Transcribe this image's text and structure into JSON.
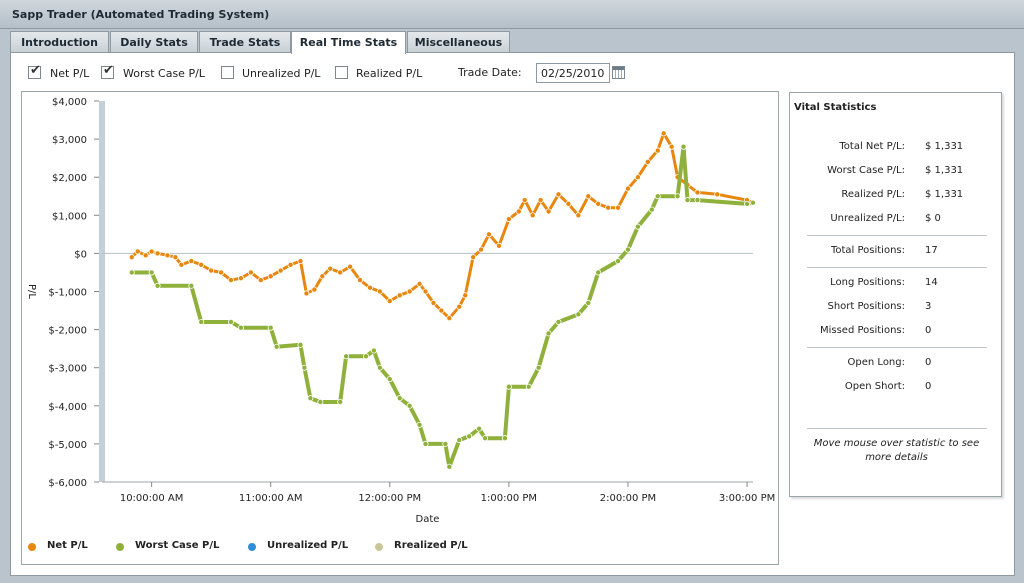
{
  "window": {
    "title": "Sapp Trader (Automated Trading System)"
  },
  "tabs": [
    {
      "label": "Introduction"
    },
    {
      "label": "Daily Stats"
    },
    {
      "label": "Trade Stats"
    },
    {
      "label": "Real Time Stats"
    },
    {
      "label": "Miscellaneous"
    }
  ],
  "active_tab": "Real Time Stats",
  "options": {
    "checkboxes": [
      {
        "label": "Net P/L",
        "checked": true
      },
      {
        "label": "Worst Case P/L",
        "checked": true
      },
      {
        "label": "Unrealized P/L",
        "checked": false
      },
      {
        "label": "Realized P/L",
        "checked": false
      }
    ],
    "trade_date_label": "Trade Date:",
    "trade_date_value": "02/25/2010"
  },
  "vitals": {
    "title": "Vital Statistics",
    "rows": [
      {
        "label": "Total Net P/L:",
        "value": "$ 1,331"
      },
      {
        "label": "Worst Case P/L:",
        "value": "$ 1,331"
      },
      {
        "label": "Realized P/L:",
        "value": "$ 1,331"
      },
      {
        "label": "Unrealized P/L:",
        "value": "$ 0"
      },
      {
        "label": "Total Positions:",
        "value": "17"
      },
      {
        "label": "Long Positions:",
        "value": "14"
      },
      {
        "label": "Short Positions:",
        "value": "3"
      },
      {
        "label": "Missed Positions:",
        "value": "0"
      },
      {
        "label": "Open Long:",
        "value": "0"
      },
      {
        "label": "Open Short:",
        "value": "0"
      }
    ],
    "note": "Move mouse over statistic to see more details"
  },
  "legend": [
    {
      "label": "Net P/L",
      "color": "#e8870d"
    },
    {
      "label": "Worst Case P/L",
      "color": "#8fb13c"
    },
    {
      "label": "Unrealized P/L",
      "color": "#2e8ed6"
    },
    {
      "label": "Rrealized P/L",
      "color": "#c9c79a"
    }
  ],
  "chart_data": {
    "type": "line",
    "xlabel": "Date",
    "ylabel": "P/L",
    "x_ticks": [
      "10:00:00 AM",
      "11:00:00 AM",
      "12:00:00 PM",
      "1:00:00 PM",
      "2:00:00 PM",
      "3:00:00 PM"
    ],
    "x_range": [
      "9:35",
      "3:03"
    ],
    "y_ticks": [
      "$4,000",
      "$3,000",
      "$2,000",
      "$1,000",
      "$0",
      "$-1,000",
      "$-2,000",
      "$-3,000",
      "$-4,000",
      "$-5,000",
      "$-6,000"
    ],
    "ylim": [
      -6000,
      4000
    ],
    "grid": "horizontal-zero-line",
    "series": [
      {
        "name": "Net P/L",
        "color": "#e8870d",
        "points": [
          [
            "9:50",
            -100
          ],
          [
            "9:53",
            50
          ],
          [
            "9:57",
            -50
          ],
          [
            "10:00",
            50
          ],
          [
            "10:03",
            0
          ],
          [
            "10:08",
            -50
          ],
          [
            "10:12",
            -100
          ],
          [
            "10:15",
            -300
          ],
          [
            "10:20",
            -200
          ],
          [
            "10:25",
            -300
          ],
          [
            "10:30",
            -450
          ],
          [
            "10:35",
            -500
          ],
          [
            "10:40",
            -700
          ],
          [
            "10:45",
            -650
          ],
          [
            "10:50",
            -500
          ],
          [
            "10:55",
            -700
          ],
          [
            "11:00",
            -600
          ],
          [
            "11:05",
            -450
          ],
          [
            "11:10",
            -300
          ],
          [
            "11:15",
            -200
          ],
          [
            "11:18",
            -1050
          ],
          [
            "11:22",
            -950
          ],
          [
            "11:26",
            -600
          ],
          [
            "11:30",
            -400
          ],
          [
            "11:35",
            -500
          ],
          [
            "11:40",
            -350
          ],
          [
            "11:45",
            -700
          ],
          [
            "11:50",
            -900
          ],
          [
            "11:55",
            -1000
          ],
          [
            "12:00",
            -1250
          ],
          [
            "12:05",
            -1100
          ],
          [
            "12:10",
            -1000
          ],
          [
            "12:15",
            -800
          ],
          [
            "12:18",
            -1000
          ],
          [
            "12:22",
            -1300
          ],
          [
            "12:26",
            -1500
          ],
          [
            "12:30",
            -1700
          ],
          [
            "12:35",
            -1400
          ],
          [
            "12:38",
            -1100
          ],
          [
            "12:42",
            -100
          ],
          [
            "12:46",
            100
          ],
          [
            "12:50",
            500
          ],
          [
            "12:55",
            200
          ],
          [
            "13:00",
            900
          ],
          [
            "13:05",
            1100
          ],
          [
            "13:08",
            1400
          ],
          [
            "13:12",
            1000
          ],
          [
            "13:16",
            1400
          ],
          [
            "13:20",
            1100
          ],
          [
            "13:25",
            1550
          ],
          [
            "13:30",
            1300
          ],
          [
            "13:35",
            1000
          ],
          [
            "13:40",
            1500
          ],
          [
            "13:45",
            1300
          ],
          [
            "13:50",
            1200
          ],
          [
            "13:55",
            1200
          ],
          [
            "14:00",
            1700
          ],
          [
            "14:05",
            2000
          ],
          [
            "14:10",
            2400
          ],
          [
            "14:15",
            2700
          ],
          [
            "14:18",
            3150
          ],
          [
            "14:22",
            2800
          ],
          [
            "14:25",
            2000
          ],
          [
            "14:30",
            1800
          ],
          [
            "14:35",
            1600
          ],
          [
            "14:45",
            1550
          ],
          [
            "15:00",
            1400
          ],
          [
            "15:03",
            1330
          ]
        ]
      },
      {
        "name": "Worst Case P/L",
        "color": "#8fb13c",
        "points": [
          [
            "9:50",
            -500
          ],
          [
            "10:00",
            -500
          ],
          [
            "10:03",
            -850
          ],
          [
            "10:20",
            -850
          ],
          [
            "10:25",
            -1800
          ],
          [
            "10:40",
            -1800
          ],
          [
            "10:45",
            -1950
          ],
          [
            "11:00",
            -1950
          ],
          [
            "11:03",
            -2450
          ],
          [
            "11:15",
            -2400
          ],
          [
            "11:17",
            -3000
          ],
          [
            "11:20",
            -3800
          ],
          [
            "11:25",
            -3900
          ],
          [
            "11:35",
            -3900
          ],
          [
            "11:38",
            -2700
          ],
          [
            "11:48",
            -2700
          ],
          [
            "11:52",
            -2550
          ],
          [
            "11:55",
            -3000
          ],
          [
            "12:00",
            -3300
          ],
          [
            "12:05",
            -3800
          ],
          [
            "12:10",
            -4000
          ],
          [
            "12:15",
            -4500
          ],
          [
            "12:18",
            -5000
          ],
          [
            "12:28",
            -5000
          ],
          [
            "12:30",
            -5600
          ],
          [
            "12:35",
            -4900
          ],
          [
            "12:40",
            -4800
          ],
          [
            "12:45",
            -4600
          ],
          [
            "12:48",
            -4850
          ],
          [
            "12:58",
            -4850
          ],
          [
            "13:00",
            -3500
          ],
          [
            "13:10",
            -3500
          ],
          [
            "13:15",
            -3000
          ],
          [
            "13:20",
            -2100
          ],
          [
            "13:25",
            -1800
          ],
          [
            "13:35",
            -1600
          ],
          [
            "13:40",
            -1300
          ],
          [
            "13:45",
            -500
          ],
          [
            "13:55",
            -200
          ],
          [
            "14:00",
            100
          ],
          [
            "14:05",
            700
          ],
          [
            "14:12",
            1150
          ],
          [
            "14:15",
            1500
          ],
          [
            "14:25",
            1500
          ],
          [
            "14:28",
            2800
          ],
          [
            "14:30",
            1400
          ],
          [
            "14:35",
            1400
          ],
          [
            "15:00",
            1300
          ],
          [
            "15:03",
            1330
          ]
        ]
      }
    ]
  }
}
